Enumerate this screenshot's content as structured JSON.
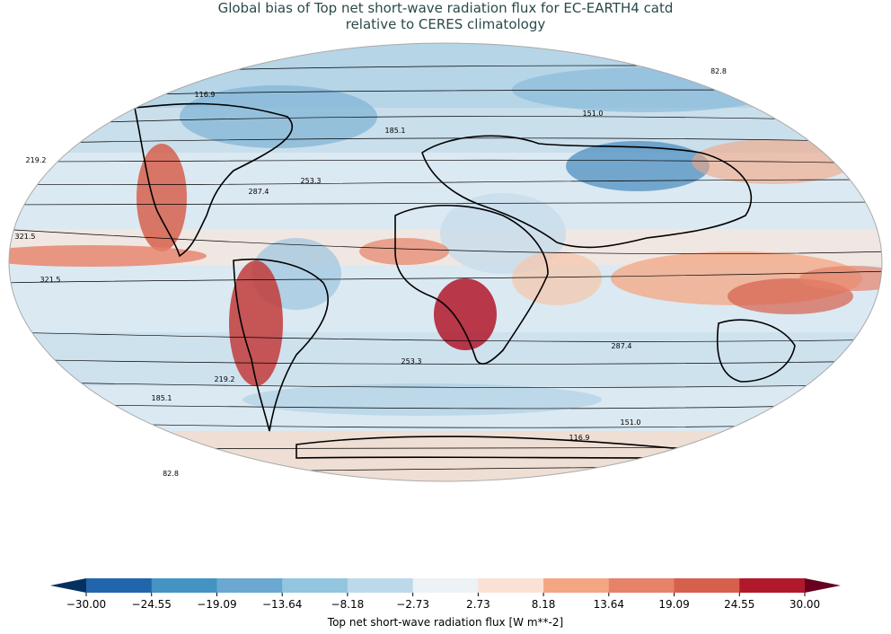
{
  "title": {
    "line1": "Global bias of Top net short-wave radiation flux for EC-EARTH4 catd",
    "line2": "relative to CERES climatology"
  },
  "colorbar": {
    "label": "Top net short-wave radiation flux [W m**-2]",
    "ticks": [
      "−30.00",
      "−24.55",
      "−19.09",
      "−13.64",
      "−8.18",
      "−2.73",
      "2.73",
      "8.18",
      "13.64",
      "19.09",
      "24.55",
      "30.00"
    ],
    "colors": [
      "#2166ac",
      "#4393c3",
      "#6aa8d2",
      "#92c5de",
      "#bcd9ea",
      "#ecf2f6",
      "#fbe1d3",
      "#f4a582",
      "#e6816a",
      "#d6604d",
      "#b2182b"
    ],
    "extend_low": "#053061",
    "extend_high": "#67001f"
  },
  "contour_labels": {
    "north": [
      "82.8",
      "116.9",
      "151.0",
      "185.1",
      "219.2",
      "253.3",
      "287.4",
      "321.5"
    ],
    "south": [
      "321.5",
      "287.4",
      "253.3",
      "219.2",
      "185.1",
      "151.0",
      "116.9",
      "82.8"
    ]
  }
}
